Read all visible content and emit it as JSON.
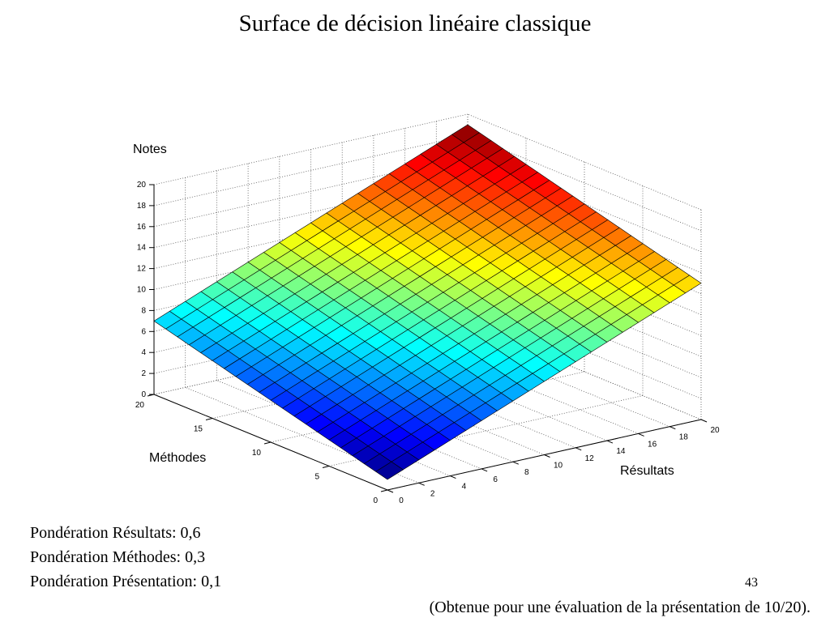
{
  "chart_data": {
    "type": "surface",
    "title": "Surface de décision linéaire classique",
    "xlabel": "Résultats",
    "ylabel": "Méthodes",
    "zlabel": "Notes",
    "colormap": "jet",
    "grid": true,
    "x": [
      0,
      1,
      2,
      3,
      4,
      5,
      6,
      7,
      8,
      9,
      10,
      11,
      12,
      13,
      14,
      15,
      16,
      17,
      18,
      19,
      20
    ],
    "y": [
      0,
      1,
      2,
      3,
      4,
      5,
      6,
      7,
      8,
      9,
      10,
      11,
      12,
      13,
      14,
      15,
      16,
      17,
      18,
      19,
      20
    ],
    "z": [
      [
        1,
        1.6,
        2.2,
        2.8,
        3.4,
        4,
        4.6,
        5.2,
        5.8,
        6.4,
        7,
        7.6,
        8.2,
        8.8,
        9.4,
        10,
        10.6,
        11.2,
        11.8,
        12.4,
        13
      ],
      [
        1.3,
        1.9,
        2.5,
        3.1,
        3.7,
        4.3,
        4.9,
        5.5,
        6.1,
        6.7,
        7.3,
        7.9,
        8.5,
        9.1,
        9.7,
        10.3,
        10.9,
        11.5,
        12.1,
        12.7,
        13.3
      ],
      [
        1.6,
        2.2,
        2.8,
        3.4,
        4,
        4.6,
        5.2,
        5.8,
        6.4,
        7,
        7.6,
        8.2,
        8.8,
        9.4,
        10,
        10.6,
        11.2,
        11.8,
        12.4,
        13,
        13.6
      ],
      [
        1.9,
        2.5,
        3.1,
        3.7,
        4.3,
        4.9,
        5.5,
        6.1,
        6.7,
        7.3,
        7.9,
        8.5,
        9.1,
        9.7,
        10.3,
        10.9,
        11.5,
        12.1,
        12.7,
        13.3,
        13.9
      ],
      [
        2.2,
        2.8,
        3.4,
        4,
        4.6,
        5.2,
        5.8,
        6.4,
        7,
        7.6,
        8.2,
        8.8,
        9.4,
        10,
        10.6,
        11.2,
        11.8,
        12.4,
        13,
        13.6,
        14.2
      ],
      [
        2.5,
        3.1,
        3.7,
        4.3,
        4.9,
        5.5,
        6.1,
        6.7,
        7.3,
        7.9,
        8.5,
        9.1,
        9.7,
        10.3,
        10.9,
        11.5,
        12.1,
        12.7,
        13.3,
        13.9,
        14.5
      ],
      [
        2.8,
        3.4,
        4,
        4.6,
        5.2,
        5.8,
        6.4,
        7,
        7.6,
        8.2,
        8.8,
        9.4,
        10,
        10.6,
        11.2,
        11.8,
        12.4,
        13,
        13.6,
        14.2,
        14.8
      ],
      [
        3.1,
        3.7,
        4.3,
        4.9,
        5.5,
        6.1,
        6.7,
        7.3,
        7.9,
        8.5,
        9.1,
        9.7,
        10.3,
        10.9,
        11.5,
        12.1,
        12.7,
        13.3,
        13.9,
        14.5,
        15.1
      ],
      [
        3.4,
        4,
        4.6,
        5.2,
        5.8,
        6.4,
        7,
        7.6,
        8.2,
        8.8,
        9.4,
        10,
        10.6,
        11.2,
        11.8,
        12.4,
        13,
        13.6,
        14.2,
        14.8,
        15.4
      ],
      [
        3.7,
        4.3,
        4.9,
        5.5,
        6.1,
        6.7,
        7.3,
        7.9,
        8.5,
        9.1,
        9.7,
        10.3,
        10.9,
        11.5,
        12.1,
        12.7,
        13.3,
        13.9,
        14.5,
        15.1,
        15.7
      ],
      [
        4,
        4.6,
        5.2,
        5.8,
        6.4,
        7,
        7.6,
        8.2,
        8.8,
        9.4,
        10,
        10.6,
        11.2,
        11.8,
        12.4,
        13,
        13.6,
        14.2,
        14.8,
        15.4,
        16
      ],
      [
        4.3,
        4.9,
        5.5,
        6.1,
        6.7,
        7.3,
        7.9,
        8.5,
        9.1,
        9.7,
        10.3,
        10.9,
        11.5,
        12.1,
        12.7,
        13.3,
        13.9,
        14.5,
        15.1,
        15.7,
        16.3
      ],
      [
        4.6,
        5.2,
        5.8,
        6.4,
        7,
        7.6,
        8.2,
        8.8,
        9.4,
        10,
        10.6,
        11.2,
        11.8,
        12.4,
        13,
        13.6,
        14.2,
        14.8,
        15.4,
        16,
        16.6
      ],
      [
        4.9,
        5.5,
        6.1,
        6.7,
        7.3,
        7.9,
        8.5,
        9.1,
        9.7,
        10.3,
        10.9,
        11.5,
        12.1,
        12.7,
        13.3,
        13.9,
        14.5,
        15.1,
        15.7,
        16.3,
        16.9
      ],
      [
        5.2,
        5.8,
        6.4,
        7,
        7.6,
        8.2,
        8.8,
        9.4,
        10,
        10.6,
        11.2,
        11.8,
        12.4,
        13,
        13.6,
        14.2,
        14.8,
        15.4,
        16,
        16.6,
        17.2
      ],
      [
        5.5,
        6.1,
        6.7,
        7.3,
        7.9,
        8.5,
        9.1,
        9.7,
        10.3,
        10.9,
        11.5,
        12.1,
        12.7,
        13.3,
        13.9,
        14.5,
        15.1,
        15.7,
        16.3,
        16.9,
        17.5
      ],
      [
        5.8,
        6.4,
        7,
        7.6,
        8.2,
        8.8,
        9.4,
        10,
        10.6,
        11.2,
        11.8,
        12.4,
        13,
        13.6,
        14.2,
        14.8,
        15.4,
        16,
        16.6,
        17.2,
        17.8
      ],
      [
        6.1,
        6.7,
        7.3,
        7.9,
        8.5,
        9.1,
        9.7,
        10.3,
        10.9,
        11.5,
        12.1,
        12.7,
        13.3,
        13.9,
        14.5,
        15.1,
        15.7,
        16.3,
        16.9,
        17.5,
        18.1
      ],
      [
        6.4,
        7,
        7.6,
        8.2,
        8.8,
        9.4,
        10,
        10.6,
        11.2,
        11.8,
        12.4,
        13,
        13.6,
        14.2,
        14.8,
        15.4,
        16,
        16.6,
        17.2,
        17.8,
        18.4
      ],
      [
        6.7,
        7.3,
        7.9,
        8.5,
        9.1,
        9.7,
        10.3,
        10.9,
        11.5,
        12.1,
        12.7,
        13.3,
        13.9,
        14.5,
        15.1,
        15.7,
        16.3,
        16.9,
        17.5,
        18.1,
        18.7
      ],
      [
        7,
        7.6,
        8.2,
        8.8,
        9.4,
        10,
        10.6,
        11.2,
        11.8,
        12.4,
        13,
        13.6,
        14.2,
        14.8,
        15.4,
        16,
        16.6,
        17.2,
        17.8,
        18.4,
        19
      ]
    ],
    "xlim": [
      0,
      20
    ],
    "ylim": [
      0,
      20
    ],
    "zlim": [
      0,
      20
    ],
    "xticks": [
      0,
      2,
      4,
      6,
      8,
      10,
      12,
      14,
      16,
      18,
      20
    ],
    "yticks": [
      0,
      5,
      10,
      15,
      20
    ],
    "zticks": [
      0,
      2,
      4,
      6,
      8,
      10,
      12,
      14,
      16,
      18,
      20
    ]
  },
  "notes": [
    "Pondération Résultats: 0,6",
    "Pondération Méthodes: 0,3",
    "Pondération Présentation: 0,1"
  ],
  "page_number": "43",
  "footnote": "(Obtenue pour une évaluation de la présentation de 10/20)."
}
